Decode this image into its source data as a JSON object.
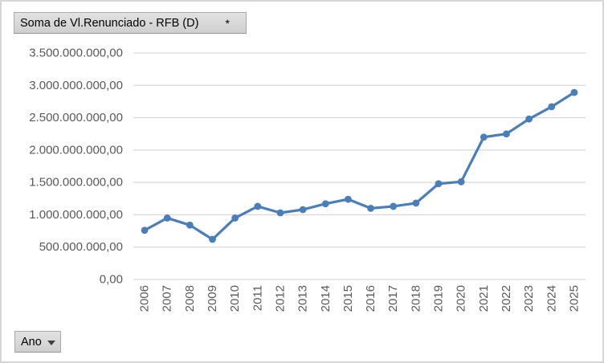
{
  "buttons": {
    "value_field": {
      "label": "Soma de Vl.Renunciado - RFB (D)",
      "indicator": "*"
    },
    "axis_field": {
      "label": "Ano",
      "icon": "dropdown-arrow"
    }
  },
  "chart_data": {
    "type": "line",
    "title": "",
    "xlabel": "Ano",
    "ylabel": "",
    "categories": [
      "2006",
      "2007",
      "2008",
      "2009",
      "2010",
      "2011",
      "2012",
      "2013",
      "2014",
      "2015",
      "2016",
      "2017",
      "2018",
      "2019",
      "2020",
      "2021",
      "2022",
      "2023",
      "2024",
      "2025"
    ],
    "series": [
      {
        "name": "Soma de Vl.Renunciado - RFB (D)",
        "values": [
          760000000,
          950000000,
          840000000,
          620000000,
          950000000,
          1130000000,
          1030000000,
          1080000000,
          1170000000,
          1240000000,
          1100000000,
          1130000000,
          1180000000,
          1480000000,
          1510000000,
          2200000000,
          2250000000,
          2480000000,
          2670000000,
          2890000000
        ]
      }
    ],
    "ylim": [
      0,
      3500000000
    ],
    "ytick_interval": 500000000,
    "ytick_labels": [
      "0,00",
      "500.000.000,00",
      "1.000.000.000,00",
      "1.500.000.000,00",
      "2.000.000.000,00",
      "2.500.000.000,00",
      "3.000.000.000,00",
      "3.500.000.000,00"
    ],
    "grid": true,
    "legend": false,
    "marker": "circle",
    "colors": {
      "line": "#4a7ebb",
      "gridline": "#d9d9d9",
      "axis_labels": "#595959"
    }
  }
}
